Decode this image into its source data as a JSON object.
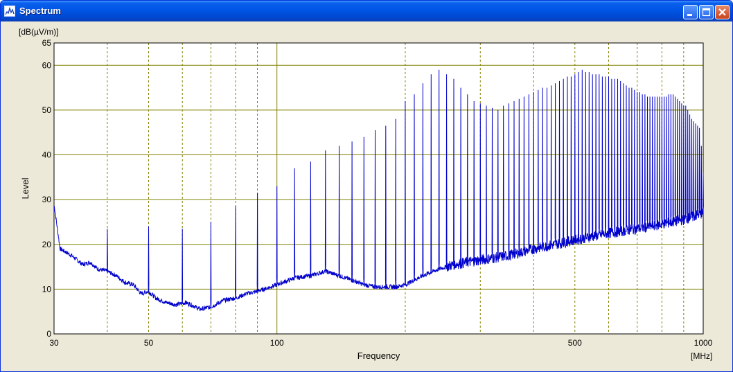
{
  "window": {
    "title": "Spectrum",
    "icon": "spectrum-app-icon",
    "buttons": [
      "minimize-icon",
      "maximize-icon",
      "close-icon"
    ]
  },
  "chart_data": {
    "type": "line",
    "xlabel": "Frequency",
    "xunit": "[MHz]",
    "ylabel": "Level",
    "yunit": "[dB(µV/m)]",
    "xscale": "log",
    "xlim": [
      30,
      1000
    ],
    "ylim": [
      0,
      65
    ],
    "xticks_labeled": [
      30,
      50,
      100,
      500,
      1000
    ],
    "xgrid_minor": [
      40,
      50,
      60,
      70,
      80,
      90,
      200,
      300,
      400,
      500,
      600,
      700,
      800,
      900
    ],
    "xgrid_major": [
      100
    ],
    "yticks": [
      0,
      10,
      20,
      30,
      40,
      50,
      60,
      65
    ],
    "grid": true,
    "line_color": "#0000cc",
    "grid_color": "#808000",
    "plot_background": "#ffffff",
    "series": [
      {
        "noise_floor": [
          [
            30,
            29
          ],
          [
            31,
            19
          ],
          [
            33,
            17.5
          ],
          [
            35,
            15.5
          ],
          [
            36.5,
            16
          ],
          [
            38,
            14.5
          ],
          [
            40,
            14
          ],
          [
            42,
            13
          ],
          [
            44,
            11.5
          ],
          [
            46,
            11
          ],
          [
            48,
            9
          ],
          [
            50,
            9.5
          ],
          [
            52,
            8
          ],
          [
            55,
            7
          ],
          [
            58,
            6.5
          ],
          [
            61,
            7
          ],
          [
            63,
            6.5
          ],
          [
            66,
            5.5
          ],
          [
            70,
            6
          ],
          [
            75,
            7.5
          ],
          [
            80,
            8
          ],
          [
            85,
            9
          ],
          [
            90,
            9.5
          ],
          [
            100,
            11
          ],
          [
            110,
            12.5
          ],
          [
            120,
            13
          ],
          [
            130,
            14
          ],
          [
            140,
            13
          ],
          [
            150,
            12
          ],
          [
            160,
            11
          ],
          [
            170,
            10.5
          ],
          [
            180,
            10.5
          ],
          [
            190,
            10.5
          ],
          [
            200,
            11
          ],
          [
            220,
            13
          ],
          [
            240,
            14.5
          ],
          [
            260,
            15.5
          ],
          [
            300,
            16.5
          ],
          [
            350,
            17.5
          ],
          [
            400,
            19
          ],
          [
            450,
            20
          ],
          [
            500,
            21
          ],
          [
            600,
            22.5
          ],
          [
            700,
            23.5
          ],
          [
            800,
            24.5
          ],
          [
            900,
            25.5
          ],
          [
            1000,
            27
          ]
        ],
        "peaks": [
          [
            40,
            23.5
          ],
          [
            50,
            24
          ],
          [
            60,
            23.5
          ],
          [
            70,
            25
          ],
          [
            80,
            28.5
          ],
          [
            90,
            31.5
          ],
          [
            100,
            33
          ],
          [
            110,
            37
          ],
          [
            120,
            38.5
          ],
          [
            130,
            41
          ],
          [
            140,
            42
          ],
          [
            150,
            43
          ],
          [
            160,
            44
          ],
          [
            170,
            45.5
          ],
          [
            180,
            46.5
          ],
          [
            190,
            48
          ],
          [
            200,
            52
          ],
          [
            210,
            53.5
          ],
          [
            220,
            56
          ],
          [
            230,
            58
          ],
          [
            240,
            59
          ],
          [
            250,
            58
          ],
          [
            260,
            57
          ],
          [
            270,
            55
          ],
          [
            280,
            53.5
          ],
          [
            290,
            52
          ],
          [
            300,
            51.5
          ],
          [
            310,
            51
          ],
          [
            320,
            50.5
          ],
          [
            330,
            50
          ],
          [
            340,
            51
          ],
          [
            350,
            51.5
          ],
          [
            360,
            52
          ],
          [
            370,
            52.5
          ],
          [
            380,
            53
          ],
          [
            390,
            53.5
          ],
          [
            400,
            54
          ],
          [
            410,
            54.5
          ],
          [
            420,
            55
          ],
          [
            430,
            55
          ],
          [
            440,
            55.5
          ],
          [
            450,
            56
          ],
          [
            460,
            56.5
          ],
          [
            470,
            57
          ],
          [
            480,
            57.5
          ],
          [
            490,
            57.5
          ],
          [
            500,
            58
          ],
          [
            510,
            58.5
          ],
          [
            520,
            59
          ],
          [
            530,
            58.5
          ],
          [
            540,
            58.5
          ],
          [
            550,
            58
          ],
          [
            560,
            58
          ],
          [
            570,
            58
          ],
          [
            580,
            57.5
          ],
          [
            590,
            57.5
          ],
          [
            600,
            57.5
          ],
          [
            610,
            57
          ],
          [
            620,
            57
          ],
          [
            630,
            57
          ],
          [
            640,
            56.5
          ],
          [
            650,
            56
          ],
          [
            660,
            55.5
          ],
          [
            670,
            55
          ],
          [
            680,
            55
          ],
          [
            690,
            54.5
          ],
          [
            700,
            54
          ],
          [
            710,
            54
          ],
          [
            720,
            53.5
          ],
          [
            730,
            53.5
          ],
          [
            740,
            53
          ],
          [
            750,
            53
          ],
          [
            760,
            53
          ],
          [
            770,
            53
          ],
          [
            780,
            53
          ],
          [
            790,
            53
          ],
          [
            800,
            53
          ],
          [
            810,
            53
          ],
          [
            820,
            53
          ],
          [
            830,
            53.5
          ],
          [
            840,
            53.5
          ],
          [
            850,
            53.5
          ],
          [
            860,
            53
          ],
          [
            870,
            52.5
          ],
          [
            880,
            52
          ],
          [
            890,
            51.5
          ],
          [
            900,
            51
          ],
          [
            910,
            51
          ],
          [
            920,
            50
          ],
          [
            930,
            49
          ],
          [
            940,
            48
          ],
          [
            950,
            47.5
          ],
          [
            960,
            47
          ],
          [
            970,
            46.5
          ],
          [
            980,
            46
          ],
          [
            990,
            42
          ],
          [
            1000,
            36
          ]
        ]
      }
    ]
  }
}
